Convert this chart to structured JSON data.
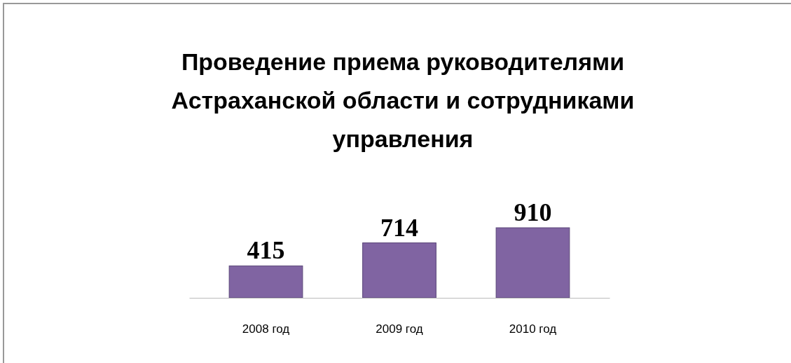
{
  "chart_data": {
    "type": "bar",
    "title": "Проведение приема руководителями Астраханской области и сотрудниками управления",
    "categories": [
      "2008 год",
      "2009 год",
      "2010 год"
    ],
    "values": [
      415,
      714,
      910
    ],
    "color": "#8064a2",
    "data_labels": true
  }
}
